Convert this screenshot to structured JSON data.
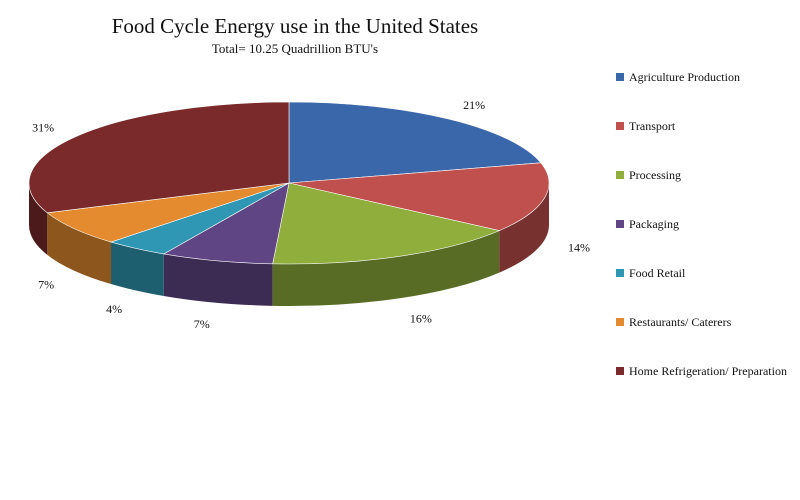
{
  "chart_data": {
    "type": "pie",
    "title": "Food Cycle Energy use in the United States",
    "subtitle": "Total= 10.25 Quadrillion BTU's",
    "legend_position": "right",
    "slices": [
      {
        "label": "Agriculture Production",
        "value": 21,
        "display": "21%",
        "color": "#3a66aa"
      },
      {
        "label": "Transport",
        "value": 14,
        "display": "14%",
        "color": "#c0504d"
      },
      {
        "label": "Processing",
        "value": 16,
        "display": "16%",
        "color": "#8fae3b"
      },
      {
        "label": "Packaging",
        "value": 7,
        "display": "7%",
        "color": "#604585"
      },
      {
        "label": "Food Retail",
        "value": 4,
        "display": "4%",
        "color": "#2f97b3"
      },
      {
        "label": "Restaurants/ Caterers",
        "value": 7,
        "display": "7%",
        "color": "#e38b2e"
      },
      {
        "label": "Home Refrigeration/ Preparation",
        "value": 31,
        "display": "31%",
        "color": "#7a2a2a"
      }
    ]
  }
}
